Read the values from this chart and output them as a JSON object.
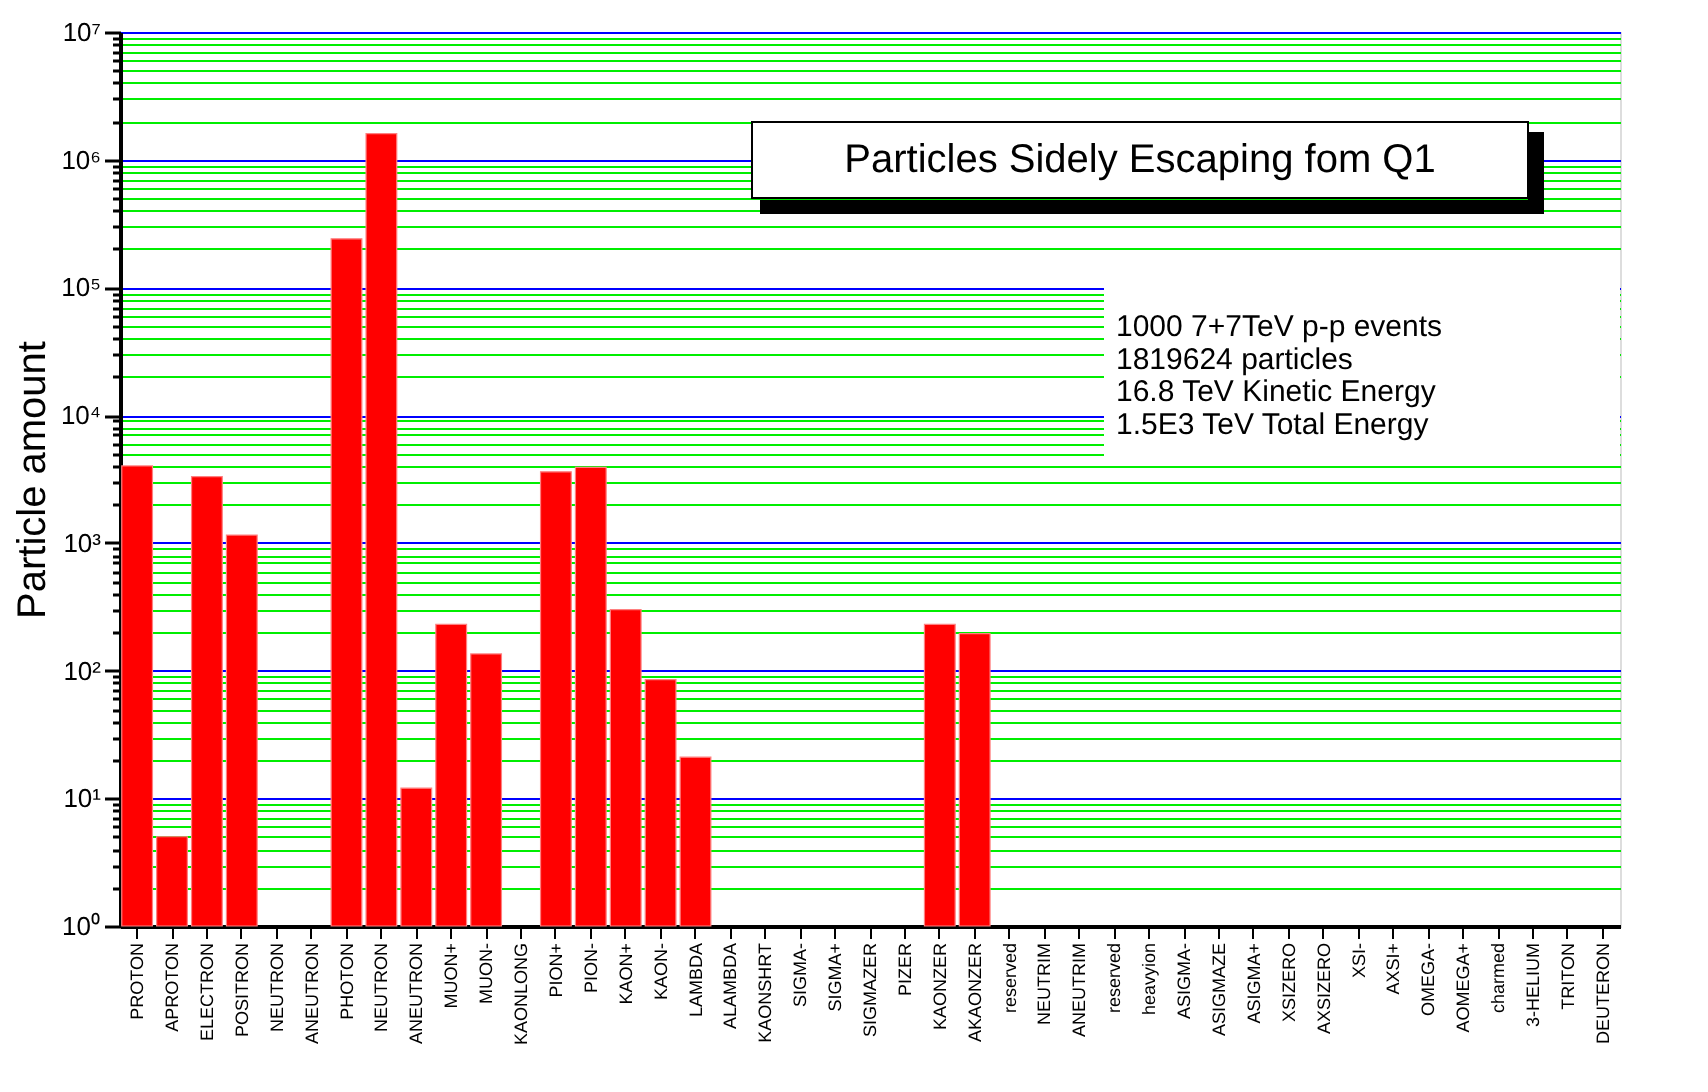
{
  "chart_data": {
    "type": "bar",
    "title": "Particles Sidely Escaping fom Q1",
    "ylabel": "Particle amount",
    "categories": [
      "PROTON",
      "APROTON",
      "ELECTRON",
      "POSITRON",
      "NEUTRON",
      "ANEUTRON",
      "PHOTON",
      "NEUTRON",
      "ANEUTRON",
      "MUON+",
      "MUON-",
      "KAONLONG",
      "PION+",
      "PION-",
      "KAON+",
      "KAON-",
      "LAMBDA",
      "ALAMBDA",
      "KAONSHRT",
      "SIGMA-",
      "SIGMA+",
      "SIGMAZER",
      "PIZER",
      "KAONZER",
      "AKAONZER",
      "reserved",
      "NEUTRIM",
      "ANEUTRIM",
      "reserved",
      "heavyion",
      "ASIGMA-",
      "ASIGMAZE",
      "ASIGMA+",
      "XSIZERO",
      "AXSIZERO",
      "XSI-",
      "AXSI+",
      "OMEGA-",
      "AOMEGA+",
      "charmed",
      "3-HELIUM",
      "TRITON",
      "DEUTERON"
    ],
    "values": [
      4000,
      5,
      3300,
      1150,
      null,
      null,
      240000,
      1600000,
      12,
      230,
      135,
      null,
      3600,
      3900,
      300,
      85,
      21,
      null,
      null,
      null,
      null,
      null,
      null,
      230,
      195,
      null,
      null,
      null,
      null,
      null,
      null,
      null,
      null,
      null,
      null,
      null,
      null,
      null,
      null,
      null,
      null,
      null,
      null
    ],
    "color": "#ff0000",
    "log": true,
    "ylim": [
      1,
      10000000
    ],
    "yticks": [
      {
        "value": 1,
        "label": "10⁰"
      },
      {
        "value": 2,
        "label": null
      },
      {
        "value": 3,
        "label": null
      },
      {
        "value": 4,
        "label": null
      },
      {
        "value": 5,
        "label": null
      },
      {
        "value": 6,
        "label": null
      },
      {
        "value": 7,
        "label": null
      },
      {
        "value": 8,
        "label": null
      },
      {
        "value": 9,
        "label": null
      },
      {
        "value": 10,
        "label": "10¹"
      },
      {
        "value": 20,
        "label": null
      },
      {
        "value": 30,
        "label": null
      },
      {
        "value": 40,
        "label": null
      },
      {
        "value": 50,
        "label": null
      },
      {
        "value": 60,
        "label": null
      },
      {
        "value": 70,
        "label": null
      },
      {
        "value": 80,
        "label": null
      },
      {
        "value": 90,
        "label": null
      },
      {
        "value": 100,
        "label": "10²"
      },
      {
        "value": 200,
        "label": null
      },
      {
        "value": 300,
        "label": null
      },
      {
        "value": 400,
        "label": null
      },
      {
        "value": 500,
        "label": null
      },
      {
        "value": 600,
        "label": null
      },
      {
        "value": 700,
        "label": null
      },
      {
        "value": 800,
        "label": null
      },
      {
        "value": 900,
        "label": null
      },
      {
        "value": 1000,
        "label": "10³"
      },
      {
        "value": 2000,
        "label": null
      },
      {
        "value": 3000,
        "label": null
      },
      {
        "value": 4000,
        "label": null
      },
      {
        "value": 5000,
        "label": null
      },
      {
        "value": 6000,
        "label": null
      },
      {
        "value": 7000,
        "label": null
      },
      {
        "value": 8000,
        "label": null
      },
      {
        "value": 9000,
        "label": null
      },
      {
        "value": 10000,
        "label": "10⁴"
      },
      {
        "value": 20000,
        "label": null
      },
      {
        "value": 30000,
        "label": null
      },
      {
        "value": 40000,
        "label": null
      },
      {
        "value": 50000,
        "label": null
      },
      {
        "value": 60000,
        "label": null
      },
      {
        "value": 70000,
        "label": null
      },
      {
        "value": 80000,
        "label": null
      },
      {
        "value": 90000,
        "label": null
      },
      {
        "value": 100000,
        "label": "10⁵"
      },
      {
        "value": 200000,
        "label": null
      },
      {
        "value": 300000,
        "label": null
      },
      {
        "value": 400000,
        "label": null
      },
      {
        "value": 500000,
        "label": null
      },
      {
        "value": 600000,
        "label": null
      },
      {
        "value": 700000,
        "label": null
      },
      {
        "value": 800000,
        "label": null
      },
      {
        "value": 900000,
        "label": null
      },
      {
        "value": 1000000,
        "label": "10⁶"
      },
      {
        "value": 2000000,
        "label": null
      },
      {
        "value": 3000000,
        "label": null
      },
      {
        "value": 4000000,
        "label": null
      },
      {
        "value": 5000000,
        "label": null
      },
      {
        "value": 6000000,
        "label": null
      },
      {
        "value": 7000000,
        "label": null
      },
      {
        "value": 8000000,
        "label": null
      },
      {
        "value": 9000000,
        "label": null
      },
      {
        "value": 10000000,
        "label": "10⁷"
      }
    ],
    "grid": "y",
    "annotations": [
      "1000 7+7TeV p-p events",
      "1819624 particles",
      "16.8   TeV Kinetic Energy",
      "1.5E3 TeV Total Energy"
    ]
  }
}
